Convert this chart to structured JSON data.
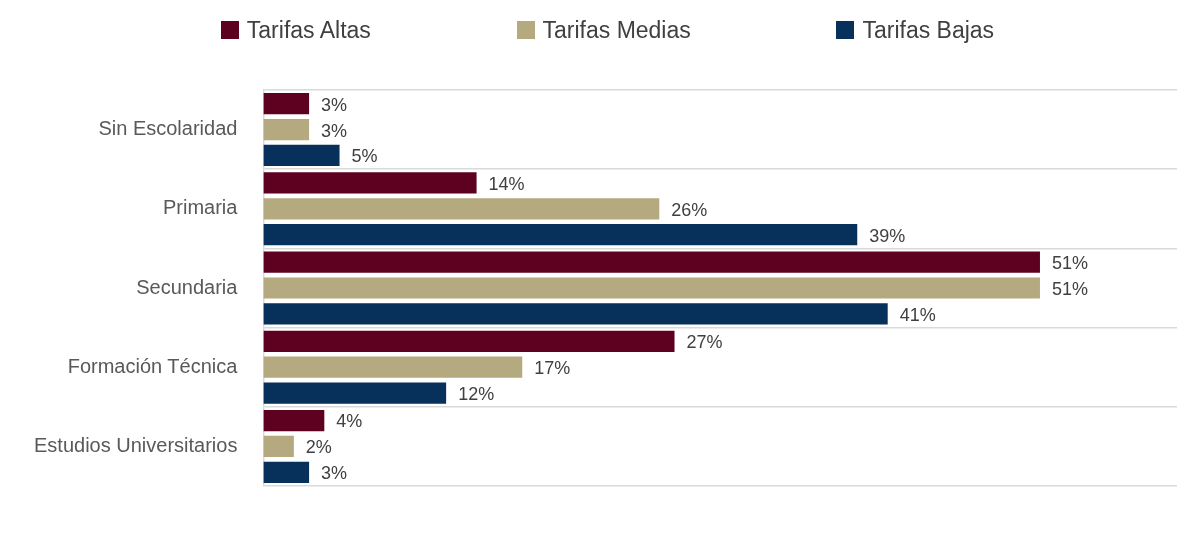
{
  "chart_data": {
    "type": "bar",
    "orientation": "horizontal",
    "categories": [
      "Sin Escolaridad",
      "Primaria",
      "Secundaria",
      "Formación Técnica",
      "Estudios Universitarios"
    ],
    "series": [
      {
        "name": "Tarifas Altas",
        "color": "#5e001f",
        "values": [
          3,
          14,
          51,
          27,
          4
        ],
        "value_labels": [
          "3%",
          "14%",
          "51%",
          "27%",
          "4%"
        ]
      },
      {
        "name": "Tarifas Medias",
        "color": "#b4a97f",
        "values": [
          3,
          26,
          51,
          17,
          2
        ],
        "value_labels": [
          "3%",
          "26%",
          "51%",
          "17%",
          "2%"
        ]
      },
      {
        "name": "Tarifas Bajas",
        "color": "#07305a",
        "values": [
          5,
          39,
          41,
          12,
          3
        ],
        "value_labels": [
          "5%",
          "39%",
          "41%",
          "12%",
          "3%"
        ]
      }
    ],
    "grid": "y",
    "legend": "top"
  }
}
